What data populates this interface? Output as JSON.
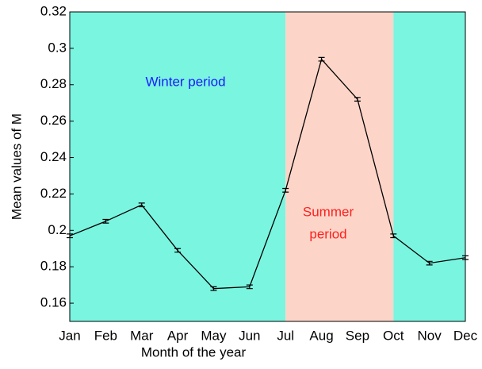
{
  "chart_data": {
    "type": "line",
    "x_label": "Month of the year",
    "y_label": "Mean values of M",
    "categories": [
      "Jan",
      "Feb",
      "Mar",
      "Apr",
      "May",
      "Jun",
      "Jul",
      "Aug",
      "Sep",
      "Oct",
      "Nov",
      "Dec"
    ],
    "series": [
      {
        "color": "#000000",
        "values": [
          0.197,
          0.205,
          0.214,
          0.189,
          0.168,
          0.169,
          0.222,
          0.294,
          0.272,
          0.197,
          0.182,
          0.185
        ],
        "errors": [
          0.001,
          0.001,
          0.001,
          0.001,
          0.001,
          0.001,
          0.001,
          0.001,
          0.001,
          0.001,
          0.001,
          0.001
        ]
      }
    ],
    "ylim": [
      0.15,
      0.32
    ],
    "yticks": [
      0.16,
      0.18,
      0.2,
      0.22,
      0.24,
      0.26,
      0.28,
      0.3,
      0.32
    ],
    "regions": [
      {
        "from": "Jan",
        "to": "Jul",
        "color": "#7af5e0"
      },
      {
        "from": "Jul",
        "to": "Oct",
        "color": "#fdd5c8"
      },
      {
        "from": "Oct",
        "to": "Dec",
        "color": "#7af5e0"
      }
    ],
    "annotations": [
      {
        "lines": [
          "Winter period"
        ],
        "color": "#1a1aff"
      },
      {
        "lines": [
          "Summer",
          "period"
        ],
        "color": "#ff2020"
      }
    ]
  }
}
